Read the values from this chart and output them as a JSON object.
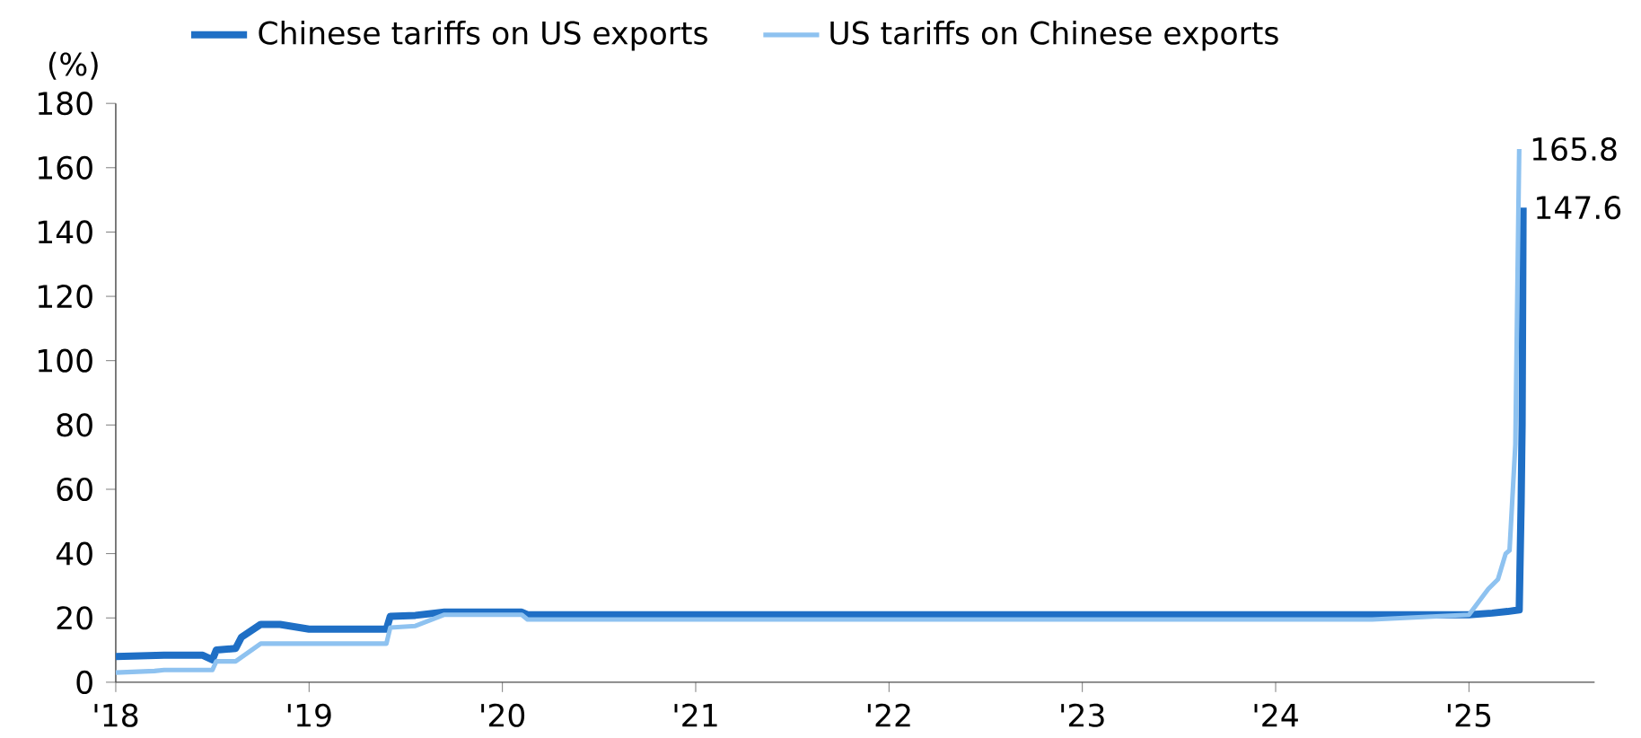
{
  "chart_data": {
    "type": "line",
    "ylabel": "(%)",
    "xlim": [
      2018,
      2025.65
    ],
    "ylim": [
      0,
      180
    ],
    "xticks": [
      {
        "value": 2018,
        "label": "'18"
      },
      {
        "value": 2019,
        "label": "'19"
      },
      {
        "value": 2020,
        "label": "'20"
      },
      {
        "value": 2021,
        "label": "'21"
      },
      {
        "value": 2022,
        "label": "'22"
      },
      {
        "value": 2023,
        "label": "'23"
      },
      {
        "value": 2024,
        "label": "'24"
      },
      {
        "value": 2025,
        "label": "'25"
      }
    ],
    "yticks": [
      0,
      20,
      40,
      60,
      80,
      100,
      120,
      140,
      160,
      180
    ],
    "legend": "top",
    "grid": false,
    "marker": "none",
    "line_style": "solid",
    "series": [
      {
        "name": "Chinese tariffs on US exports",
        "color": "#1f6fc5",
        "x": [
          2018.0,
          2018.25,
          2018.45,
          2018.5,
          2018.52,
          2018.62,
          2018.65,
          2018.75,
          2018.85,
          2019.0,
          2019.4,
          2019.42,
          2019.55,
          2019.7,
          2020.1,
          2020.13,
          2025.0,
          2025.12,
          2025.2,
          2025.26,
          2025.27,
          2025.275,
          2025.28
        ],
        "values": [
          8,
          8.4,
          8.4,
          7,
          10,
          10.5,
          14,
          18,
          18,
          16.5,
          16.5,
          20.5,
          20.8,
          21.8,
          21.8,
          21,
          21,
          21.5,
          22,
          22.5,
          56,
          80,
          147.6
        ]
      },
      {
        "name": "US tariffs on Chinese exports",
        "color": "#8ec2f0",
        "x": [
          2018.0,
          2018.2,
          2018.25,
          2018.5,
          2018.52,
          2018.62,
          2018.75,
          2019.4,
          2019.42,
          2019.55,
          2019.7,
          2020.1,
          2020.13,
          2024.5,
          2025.0,
          2025.1,
          2025.15,
          2025.19,
          2025.21,
          2025.24,
          2025.26
        ],
        "values": [
          3,
          3.5,
          3.8,
          3.8,
          6.5,
          6.5,
          12,
          12,
          17,
          17.5,
          21,
          21,
          19.5,
          19.5,
          21,
          29,
          32,
          40,
          41,
          74,
          165.8
        ]
      }
    ],
    "annotations": [
      {
        "text": "165.8",
        "x": 2025.26,
        "y": 165.8
      },
      {
        "text": "147.6",
        "x": 2025.28,
        "y": 147.6
      }
    ]
  }
}
